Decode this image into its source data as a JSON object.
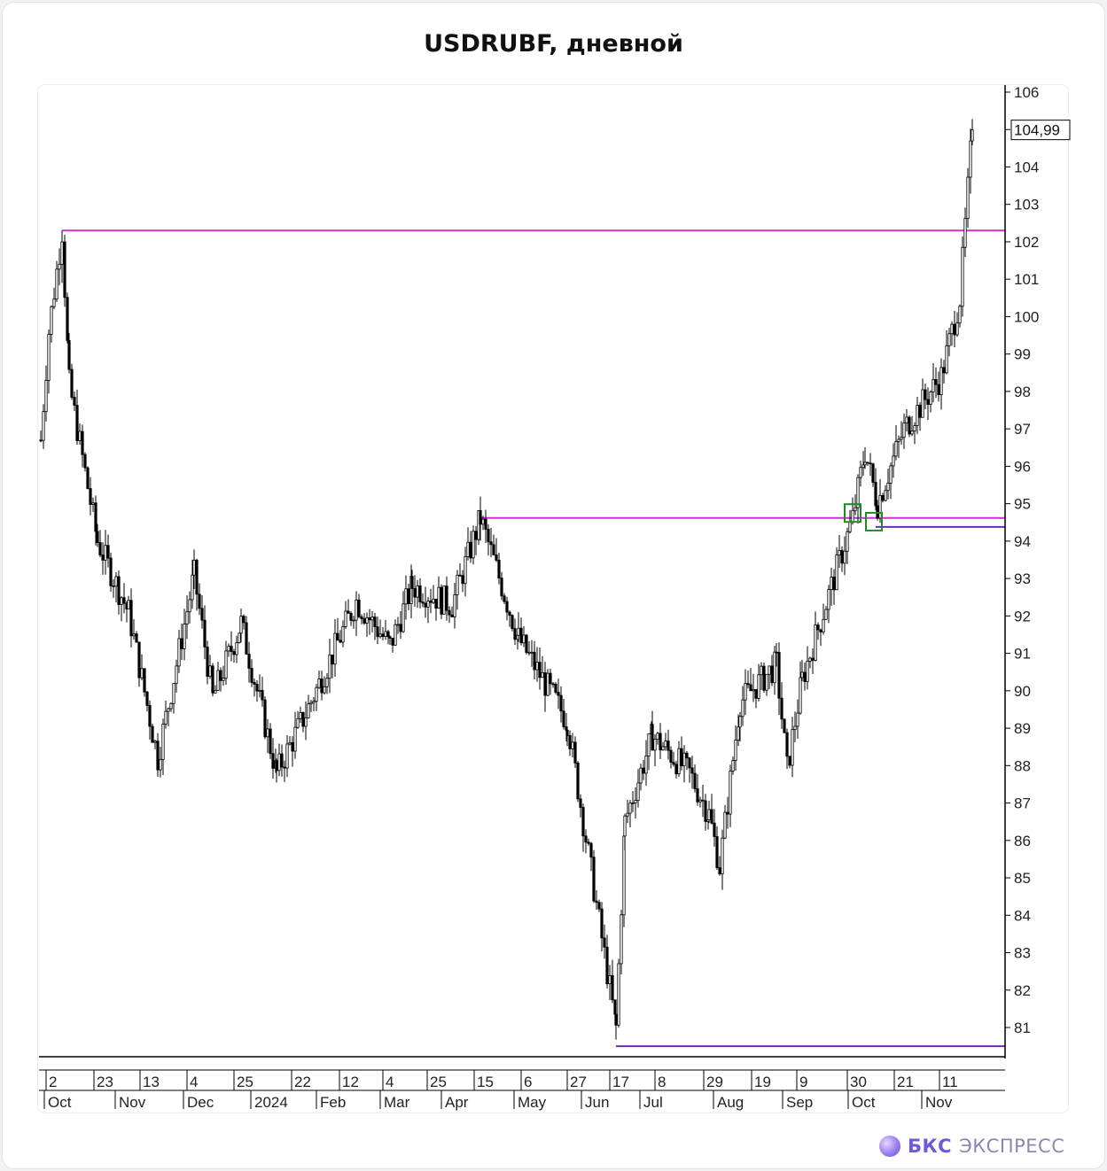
{
  "chart_data": {
    "type": "candlestick",
    "title": "USDRUBF, дневной",
    "xlabel": "",
    "ylabel": "",
    "ylim": [
      80.5,
      106.2
    ],
    "y_ticks": [
      81,
      82,
      83,
      84,
      85,
      86,
      87,
      88,
      89,
      90,
      91,
      92,
      93,
      94,
      95,
      96,
      97,
      98,
      99,
      100,
      101,
      102,
      103,
      104,
      105,
      106
    ],
    "last_price": 104.99,
    "last_price_label": "104,99",
    "x_day_labels": [
      "2",
      "23",
      "13",
      "4",
      "25",
      "22",
      "12",
      "4",
      "25",
      "15",
      "6",
      "27",
      "17",
      "8",
      "29",
      "19",
      "9",
      "30",
      "21",
      "11"
    ],
    "x_month_labels": [
      "Oct",
      "Nov",
      "Dec",
      "2024",
      "Feb",
      "Mar",
      "Apr",
      "May",
      "Jun",
      "Jul",
      "Aug",
      "Sep",
      "Oct",
      "Nov"
    ],
    "anchors": [
      {
        "label": "2 Oct 2023",
        "close": 96.7
      },
      {
        "label": "early Oct 2023",
        "close": 99.6
      },
      {
        "label": "9 Oct 2023",
        "close": 102.3
      },
      {
        "label": "13 Oct 2023",
        "close": 98.2
      },
      {
        "label": "23 Oct 2023",
        "close": 94.0
      },
      {
        "label": "Nov 2023",
        "close": 92.1
      },
      {
        "label": "13 Nov 2023",
        "close": 88.2
      },
      {
        "label": "4 Dec 2023",
        "close": 93.1
      },
      {
        "label": "Dec 2023",
        "close": 89.8
      },
      {
        "label": "25 Dec 2023",
        "close": 91.8
      },
      {
        "label": "Jan 2024",
        "close": 87.8
      },
      {
        "label": "Jan 2024",
        "close": 89.4
      },
      {
        "label": "12 Feb 2024",
        "close": 92.4
      },
      {
        "label": "4 Mar 2024",
        "close": 91.2
      },
      {
        "label": "Mar 2024",
        "close": 92.8
      },
      {
        "label": "25 Mar 2024",
        "close": 92.3
      },
      {
        "label": "15 Apr 2024",
        "close": 94.6
      },
      {
        "label": "6 May 2024",
        "close": 91.4
      },
      {
        "label": "27 May 2024",
        "close": 89.2
      },
      {
        "label": "17 Jun 2024",
        "close": 81.0
      },
      {
        "label": "Jun 2024",
        "close": 86.5
      },
      {
        "label": "8 Jul 2024",
        "close": 88.8
      },
      {
        "label": "Jul 2024",
        "close": 87.8
      },
      {
        "label": "Aug 2024",
        "close": 86.7
      },
      {
        "label": "29 Aug 2024",
        "close": 85.3
      },
      {
        "label": "Sep 2024",
        "close": 89.7
      },
      {
        "label": "9 Sep 2024",
        "close": 90.7
      },
      {
        "label": "Sep 2024",
        "close": 87.9
      },
      {
        "label": "19 Sep 2024",
        "close": 90.3
      },
      {
        "label": "30 Sep 2024",
        "close": 94.6
      },
      {
        "label": "Oct 2024",
        "close": 96.4
      },
      {
        "label": "Oct 2024",
        "close": 95.0
      },
      {
        "label": "21 Oct 2024",
        "close": 97.0
      },
      {
        "label": "11 Nov 2024",
        "close": 98.4
      },
      {
        "label": "Nov 2024",
        "close": 100.5
      },
      {
        "label": "Nov 2024",
        "close": 104.99
      }
    ],
    "levels": [
      {
        "price": 102.3,
        "color": "#cc33cc"
      },
      {
        "price": 94.62,
        "color": "#cc33cc"
      },
      {
        "price": 94.38,
        "color": "#6a2bb8"
      },
      {
        "price": 80.5,
        "color": "#6a2bb8"
      }
    ],
    "markers": [
      {
        "price": 94.75,
        "color": "#1e8a2a"
      },
      {
        "price": 94.52,
        "color": "#1e8a2a"
      }
    ]
  },
  "brand": {
    "bold": "БКС",
    "light": "ЭКСПРЕСС"
  }
}
